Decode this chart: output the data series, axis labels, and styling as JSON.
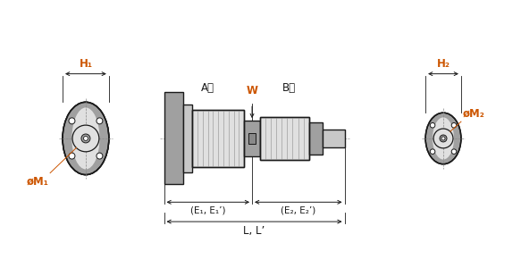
{
  "bg_color": "#ffffff",
  "line_color": "#1a1a1a",
  "gray_fill": "#c8c8c8",
  "gray_dark": "#a0a0a0",
  "gray_light": "#e0e0e0",
  "orange_color": "#cc5500",
  "label_H1": "H₁",
  "label_H2": "H₂",
  "label_W": "W",
  "label_M1": "øM₁",
  "label_M2": "øM₂",
  "label_A": "A側",
  "label_B": "B側",
  "label_E1": "(E₁, E₁’)",
  "label_E2": "(E₂, E₂’)",
  "label_L": "L, L’",
  "font_size": 8.5,
  "font_size_small": 7.5
}
